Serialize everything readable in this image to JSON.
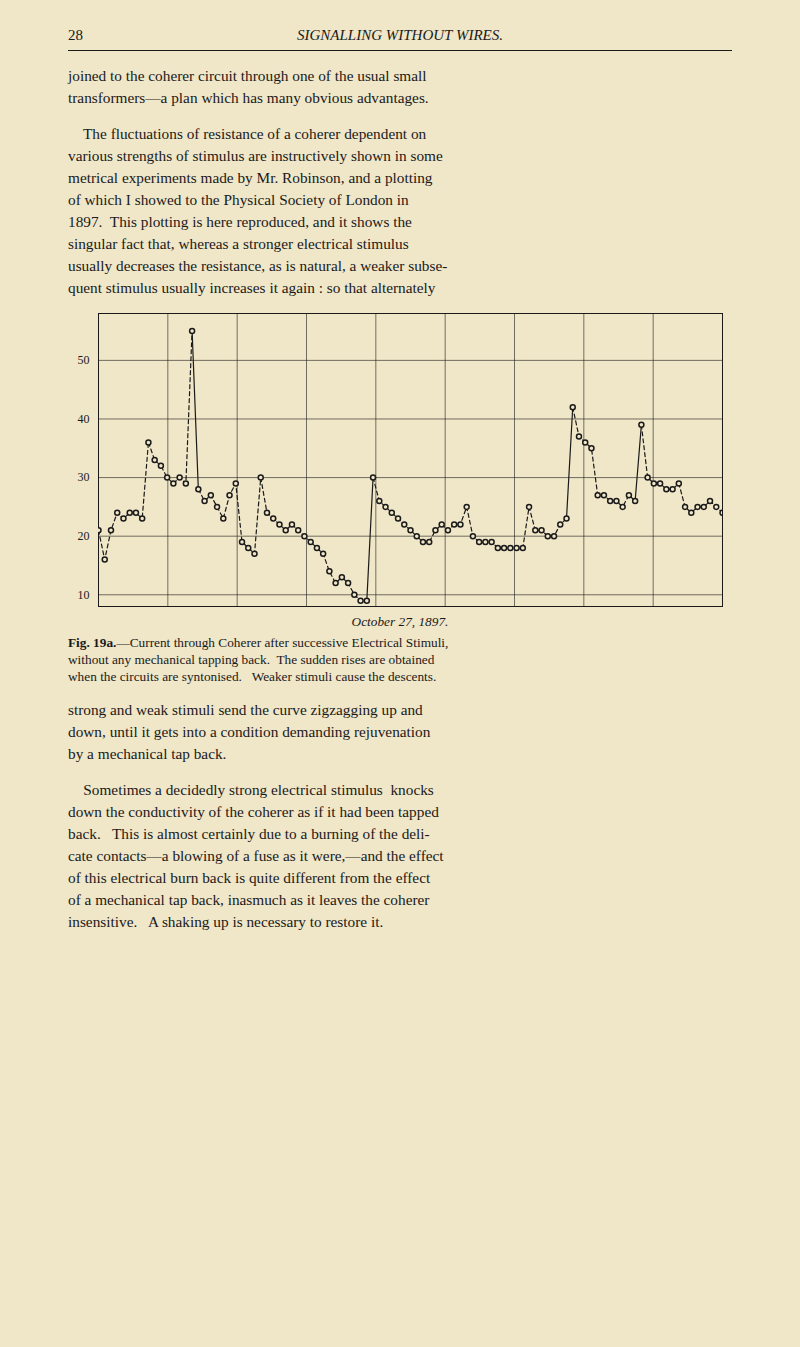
{
  "page": {
    "page_number": "28",
    "header": "SIGNALLING WITHOUT WIRES.",
    "background_color": "#f0e6c8",
    "text_color": "#1a1a1a",
    "before": [
      [
        "joined to the coherer circuit through one of the usual small",
        "transformers—a plan which has many obvious advantages."
      ],
      [
        "    The fluctuations of resistance of a coherer dependent on",
        "various strengths of stimulus are instructively shown in some",
        "metrical experiments made by Mr. Robinson, and a plotting",
        "of which I showed to the Physical Society of London in",
        "1897.  This plotting is here reproduced, and it shows the",
        "singular fact that, whereas a stronger electrical stimulus",
        "usually decreases the resistance, as is natural, a weaker subse-",
        "quent stimulus usually increases it again : so that alternately"
      ]
    ],
    "after": [
      [
        "strong and weak stimuli send the curve zigzagging up and",
        "down, until it gets into a condition demanding rejuvenation",
        "by a mechanical tap back."
      ],
      [
        "    Sometimes a decidedly strong electrical stimulus  knocks",
        "down the conductivity of the coherer as if it had been tapped",
        "back.   This is almost certainly due to a burning of the deli-",
        "cate contacts—a blowing of a fuse as it were,—and the effect",
        "of this electrical burn back is quite different from the effect",
        "of a mechanical tap back, inasmuch as it leaves the coherer",
        "insensitive.   A shaking up is necessary to restore it."
      ]
    ]
  },
  "chart_data": {
    "type": "line",
    "x_label": "October 27, 1897.",
    "caption": {
      "label": "Fig. 19a.",
      "lines": [
        "—Current through Coherer after successive Electrical Stimuli,",
        "without any mechanical tapping back.  The sudden rises are obtained",
        "when the circuits are syntonised.   Weaker stimuli cause the descents."
      ]
    },
    "x": [
      0,
      1,
      2,
      3,
      4,
      5,
      6,
      7,
      8,
      9,
      10,
      11,
      12,
      13,
      14,
      15,
      16,
      17,
      18,
      19,
      20,
      21,
      22,
      23,
      24,
      25,
      26,
      27,
      28,
      29,
      30,
      31,
      32,
      33,
      34,
      35,
      36,
      37,
      38,
      39,
      40,
      41,
      42,
      43,
      44,
      45,
      46,
      47,
      48,
      49,
      50,
      51,
      52,
      53,
      54,
      55,
      56,
      57,
      58,
      59,
      60,
      61,
      62,
      63,
      64,
      65,
      66,
      67,
      68,
      69,
      70,
      71,
      72,
      73,
      74,
      75,
      76,
      77,
      78,
      79,
      80,
      81,
      82,
      83,
      84,
      85,
      86,
      87,
      88,
      89,
      90,
      91,
      92,
      93,
      94,
      95,
      96,
      97,
      98,
      99,
      100
    ],
    "values": [
      21,
      16,
      21,
      24,
      23,
      24,
      24,
      23,
      36,
      33,
      32,
      30,
      29,
      30,
      29,
      55,
      28,
      26,
      27,
      25,
      23,
      27,
      29,
      19,
      18,
      17,
      30,
      24,
      23,
      22,
      21,
      22,
      21,
      20,
      19,
      18,
      17,
      14,
      12,
      13,
      12,
      10,
      9,
      9,
      30,
      26,
      25,
      24,
      23,
      22,
      21,
      20,
      19,
      19,
      21,
      22,
      21,
      22,
      22,
      25,
      20,
      19,
      19,
      19,
      18,
      18,
      18,
      18,
      18,
      25,
      21,
      21,
      20,
      20,
      22,
      23,
      42,
      37,
      36,
      35,
      27,
      27,
      26,
      26,
      25,
      27,
      26,
      39,
      30,
      29,
      29,
      28,
      28,
      29,
      25,
      24,
      25,
      25,
      26,
      25,
      24
    ],
    "segments": [
      {
        "range": [
          0,
          8
        ],
        "line_style": "dashed"
      },
      {
        "range": [
          8,
          15
        ],
        "line_style": "dashed"
      },
      {
        "range": [
          15,
          16
        ],
        "line_style": "solid"
      },
      {
        "range": [
          16,
          26
        ],
        "line_style": "dashed"
      },
      {
        "range": [
          26,
          43
        ],
        "line_style": "dashed"
      },
      {
        "range": [
          43,
          44
        ],
        "line_style": "solid"
      },
      {
        "range": [
          44,
          75
        ],
        "line_style": "dashed"
      },
      {
        "range": [
          75,
          76
        ],
        "line_style": "solid"
      },
      {
        "range": [
          76,
          86
        ],
        "line_style": "dashed"
      },
      {
        "range": [
          86,
          87
        ],
        "line_style": "solid"
      },
      {
        "range": [
          87,
          100
        ],
        "line_style": "dashed"
      }
    ],
    "color": "#1a1a1a",
    "marker": "open_circle",
    "xlim": [
      0,
      100
    ],
    "xticks": [
      0,
      11.11111111111111,
      22.22222222222222,
      33.333333333333336,
      44.44444444444444,
      55.55555555555556,
      66.66666666666667,
      77.77777777777777,
      88.88888888888889,
      100
    ],
    "ylim": [
      8,
      58
    ],
    "yticks": [
      10,
      20,
      30,
      40,
      50
    ],
    "grid": true,
    "tick_labels": "y"
  }
}
